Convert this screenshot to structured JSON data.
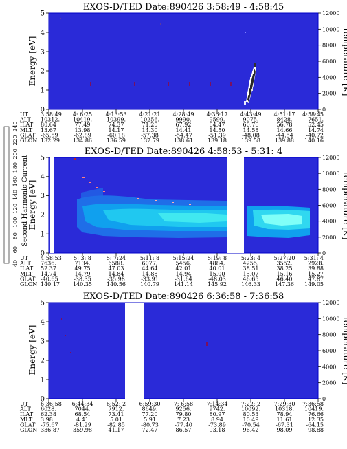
{
  "colorbar": {
    "label": "Second Harmonic Current",
    "ticks": [
      "40",
      "60",
      "80",
      "100",
      "120",
      "140",
      "160",
      "180",
      "200",
      "220",
      "240"
    ],
    "colors": [
      "#000000",
      "#3b0f4a",
      "#5a1a82",
      "#2a2ad8",
      "#1f6ee8",
      "#10b0ee",
      "#2ee8e0",
      "#40e860",
      "#c8f020",
      "#ffc000",
      "#ff5000",
      "#e80000"
    ]
  },
  "style": {
    "background_color": "#2a2ad8",
    "outline_color": "#0000c8"
  },
  "row_labels": [
    "UT",
    "ALT",
    "ILAT",
    "MLT",
    "GLAT",
    "GLON"
  ],
  "chart_data": [
    {
      "type": "heatmap",
      "title": "EXOS-D/TED   Date:890426  3:58:49 - 4:58:45",
      "ylabel": "Energy [eV]",
      "ylabel_right": "Temperature [K]",
      "ylim": [
        0,
        5
      ],
      "yticks": [
        "0",
        "1",
        "2",
        "3",
        "4",
        "5"
      ],
      "ylim_right": [
        0,
        12000
      ],
      "yticks_right": [
        "0",
        "2000",
        "4000",
        "6000",
        "8000",
        "10000",
        "12000"
      ],
      "data_gaps": [],
      "rows": {
        "UT": [
          "3:58:49",
          "4: 6:25",
          "4:13:53",
          "4:21:21",
          "4:28:49",
          "4:36:17",
          "4:43:49",
          "4:51:17",
          "4:58:45"
        ],
        "ALT": [
          "10312.",
          "10419.",
          "10399.",
          "10256.",
          "9990.",
          "9599.",
          "9075.",
          "8428.",
          "7651."
        ],
        "ILAT": [
          "80.64",
          "77.49",
          "74.37",
          "71.20",
          "67.92",
          "64.47",
          "60.76",
          "56.78",
          "52.45"
        ],
        "MLT": [
          "13.67",
          "13.98",
          "14.17",
          "14.30",
          "14.41",
          "14.50",
          "14.58",
          "14.66",
          "14.74"
        ],
        "GLAT": [
          "-65.59",
          "-62.89",
          "-60.18",
          "-57.38",
          "-54.47",
          "-51.39",
          "-48.08",
          "-44.54",
          "-40.72"
        ],
        "GLON": [
          "132.29",
          "134.86",
          "136.59",
          "137.79",
          "138.61",
          "139.18",
          "139.58",
          "139.88",
          "140.16"
        ]
      }
    },
    {
      "type": "heatmap",
      "title": "EXOS-D/TED   Date:890426  4:58:53 - 5:31: 4",
      "ylabel": "Energy [eV]",
      "ylabel_right": "Temperature [K]",
      "ylim": [
        0,
        5
      ],
      "yticks": [
        "0",
        "1",
        "2",
        "3",
        "4",
        "5"
      ],
      "ylim_right": [
        0,
        12000
      ],
      "yticks_right": [
        "0",
        "2000",
        "4000",
        "6000",
        "8000",
        "10000",
        "12000"
      ],
      "data_gaps": [
        [
          "4:58:53",
          "4:59:40"
        ],
        [
          "5:20:10",
          "5:22:20"
        ]
      ],
      "rows": {
        "UT": [
          "4:58:53",
          "5: 3: 8",
          "5: 7:24",
          "5:11: 8",
          "5:15:24",
          "5:19: 8",
          "5:23: 4",
          "5:27:20",
          "5:31: 4"
        ],
        "ALT": [
          "7636.",
          "7134.",
          "6588.",
          "6077.",
          "5456.",
          "4884.",
          "4255.",
          "3552.",
          "2928."
        ],
        "ILAT": [
          "52.37",
          "49.75",
          "47.03",
          "44.64",
          "42.01",
          "40.01",
          "38.51",
          "38.25",
          "39.88"
        ],
        "MLT": [
          "14.74",
          "14.79",
          "14.84",
          "14.88",
          "14.94",
          "15.00",
          "15.07",
          "15.16",
          "15.27"
        ],
        "GLAT": [
          "-40.65",
          "-38.35",
          "-35.98",
          "-33.91",
          "-31.64",
          "-48.03",
          "46.65",
          "46.40",
          "47.87"
        ],
        "GLON": [
          "140.17",
          "140.35",
          "140.56",
          "140.79",
          "141.14",
          "145.92",
          "146.33",
          "147.36",
          "149.05"
        ]
      }
    },
    {
      "type": "heatmap",
      "title": "EXOS-D/TED   Date:890426  6:36:58 - 7:36:58",
      "ylabel": "Energy [eV]",
      "ylabel_right": "Temperature [K]",
      "ylim": [
        0,
        5
      ],
      "yticks": [
        "0",
        "1",
        "2",
        "3",
        "4",
        "5"
      ],
      "ylim_right": [
        0,
        12000
      ],
      "yticks_right": [
        "0",
        "2000",
        "4000",
        "6000",
        "8000",
        "10000",
        "12000"
      ],
      "data_gaps": [
        [
          "6:55:10",
          "6:59:00"
        ]
      ],
      "rows": {
        "UT": [
          "6:36:58",
          "6:44:34",
          "6:52: 2",
          "6:59:30",
          "7: 6:58",
          "7:14:34",
          "7:22: 2",
          "7:29:30",
          "7:36:58"
        ],
        "ALT": [
          "6028.",
          "7044.",
          "7912.",
          "8649.",
          "9256.",
          "9742.",
          "10092.",
          "10318.",
          "10419."
        ],
        "ILAT": [
          "62.38",
          "68.54",
          "73.41",
          "77.20",
          "79.80",
          "80.97",
          "80.53",
          "78.94",
          "76.66"
        ],
        "MLT": [
          "3.98",
          "4.41",
          "5.01",
          "5.91",
          "7.23",
          "8.94",
          "10.49",
          "11.61",
          "12.35"
        ],
        "GLAT": [
          "-75.67",
          "-81.29",
          "-82.85",
          "-80.73",
          "-77.40",
          "-73.89",
          "-70.54",
          "-67.31",
          "-64.15"
        ],
        "GLON": [
          "336.87",
          "359.98",
          "41.17",
          "72.47",
          "86.57",
          "93.18",
          "96.42",
          "98.09",
          "98.88"
        ]
      }
    }
  ]
}
